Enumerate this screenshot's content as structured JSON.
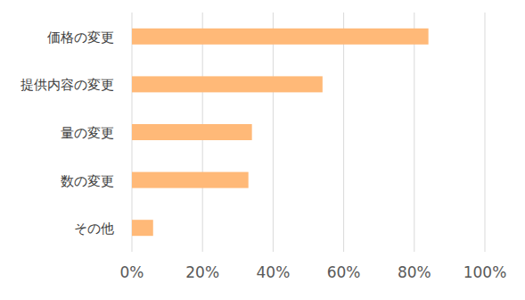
{
  "chart_data": {
    "type": "bar",
    "orientation": "horizontal",
    "categories": [
      "価格の変更",
      "提供内容の変更",
      "量の変更",
      "数の変更",
      "その他"
    ],
    "values": [
      84,
      54,
      34,
      33,
      6
    ],
    "color": "#ffb978",
    "xlim": [
      0,
      100
    ],
    "xticks": [
      {
        "value": 0,
        "label": "0%"
      },
      {
        "value": 20,
        "label": "20%"
      },
      {
        "value": 40,
        "label": "40%"
      },
      {
        "value": 60,
        "label": "60%"
      },
      {
        "value": 80,
        "label": "80%"
      },
      {
        "value": 100,
        "label": "100%"
      }
    ],
    "grid": true
  }
}
